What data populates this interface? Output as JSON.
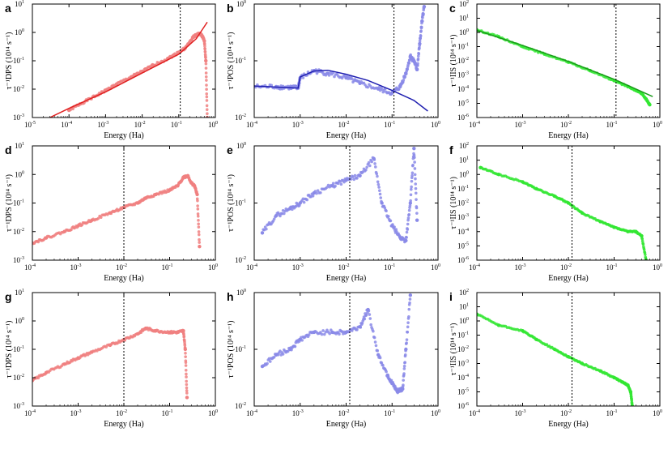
{
  "figure": {
    "xlabel": "Energy (Ha)",
    "colors": {
      "red": "#f08080",
      "red_fit": "#e02020",
      "blue": "#8a8ae8",
      "blue_fit": "#1f1fb0",
      "green": "#33e633",
      "green_fit": "#1a9a1a"
    }
  },
  "chart_data": [
    {
      "type": "scatter",
      "panel_label": "a",
      "ylabel": "τ⁻¹DPS (10¹⁴ s⁻¹)",
      "xscale": "log",
      "yscale": "log",
      "xlim": [
        1e-05,
        1
      ],
      "ylim": [
        0.001,
        10
      ],
      "xticks": [
        -5,
        -4,
        -3,
        -2,
        -1,
        0
      ],
      "yticks": [
        -3,
        -2,
        -1,
        0,
        1
      ],
      "vline_x": 0.11,
      "color": "red",
      "series": [
        {
          "kind": "scatter",
          "x": [
            0.0001,
            0.0002,
            0.0005,
            0.001,
            0.002,
            0.005,
            0.01,
            0.02,
            0.05,
            0.1,
            0.15,
            0.2,
            0.25,
            0.3,
            0.35,
            0.4,
            0.45,
            0.5,
            0.55,
            0.6
          ],
          "y": [
            0.0018,
            0.003,
            0.0055,
            0.009,
            0.015,
            0.027,
            0.042,
            0.07,
            0.12,
            0.2,
            0.28,
            0.45,
            0.7,
            0.8,
            0.9,
            0.85,
            0.7,
            0.5,
            0.1,
            0.001
          ]
        },
        {
          "kind": "fit",
          "color": "red_fit",
          "x": [
            3e-05,
            0.0001,
            0.001,
            0.01,
            0.1,
            0.3,
            0.6
          ],
          "y": [
            0.001,
            0.0021,
            0.008,
            0.037,
            0.17,
            0.6,
            2.3
          ]
        }
      ]
    },
    {
      "type": "scatter",
      "panel_label": "b",
      "ylabel": "τ⁻¹POS (10¹⁴ s⁻¹)",
      "xscale": "log",
      "yscale": "log",
      "xlim": [
        0.0001,
        1
      ],
      "ylim": [
        0.01,
        1
      ],
      "xticks": [
        -4,
        -3,
        -2,
        -1,
        0
      ],
      "yticks": [
        -2,
        -1,
        0
      ],
      "vline_x": 0.11,
      "color": "blue",
      "series": [
        {
          "kind": "scatter",
          "x": [
            0.0001,
            0.0003,
            0.0006,
            0.0009,
            0.001,
            0.002,
            0.004,
            0.01,
            0.02,
            0.05,
            0.1,
            0.15,
            0.2,
            0.25,
            0.3,
            0.35,
            0.4,
            0.45,
            0.5
          ],
          "y": [
            0.035,
            0.035,
            0.034,
            0.033,
            0.05,
            0.067,
            0.06,
            0.05,
            0.04,
            0.032,
            0.027,
            0.035,
            0.06,
            0.12,
            0.1,
            0.07,
            0.2,
            0.5,
            0.9
          ]
        },
        {
          "kind": "fit",
          "color": "blue_fit",
          "x": [
            0.0001,
            0.0009,
            0.00095,
            0.001,
            0.002,
            0.004,
            0.01,
            0.03,
            0.1,
            0.3,
            0.6
          ],
          "y": [
            0.036,
            0.033,
            0.042,
            0.052,
            0.066,
            0.068,
            0.058,
            0.045,
            0.03,
            0.02,
            0.013
          ]
        }
      ]
    },
    {
      "type": "scatter",
      "panel_label": "c",
      "ylabel": "τ⁻¹IIS (10¹⁴ s⁻¹)",
      "xscale": "log",
      "yscale": "log",
      "xlim": [
        0.0001,
        1
      ],
      "ylim": [
        1e-06,
        100
      ],
      "xticks": [
        -4,
        -3,
        -2,
        -1,
        0
      ],
      "yticks": [
        -6,
        -5,
        -4,
        -3,
        -2,
        -1,
        0,
        1,
        2
      ],
      "vline_x": 0.11,
      "color": "green",
      "series": [
        {
          "kind": "scatter",
          "x": [
            0.0001,
            0.0003,
            0.001,
            0.003,
            0.01,
            0.03,
            0.1,
            0.2,
            0.3,
            0.4,
            0.5,
            0.6
          ],
          "y": [
            1.5,
            0.5,
            0.1,
            0.03,
            0.008,
            0.002,
            0.0004,
            0.00015,
            8e-05,
            5e-05,
            2e-05,
            8e-06
          ]
        },
        {
          "kind": "fit",
          "color": "green_fit",
          "x": [
            0.0001,
            0.001,
            0.01,
            0.1,
            0.7
          ],
          "y": [
            1.4,
            0.12,
            0.009,
            0.0005,
            3e-05
          ]
        }
      ]
    },
    {
      "type": "scatter",
      "panel_label": "d",
      "ylabel": "τ⁻¹DPS (10¹⁴ s⁻¹)",
      "xscale": "log",
      "yscale": "log",
      "xlim": [
        0.0001,
        1
      ],
      "ylim": [
        0.001,
        10
      ],
      "xticks": [
        -4,
        -3,
        -2,
        -1,
        0
      ],
      "yticks": [
        -3,
        -2,
        -1,
        0,
        1
      ],
      "vline_x": 0.01,
      "color": "red",
      "series": [
        {
          "kind": "scatter",
          "x": [
            0.0001,
            0.0002,
            0.0005,
            0.001,
            0.002,
            0.005,
            0.01,
            0.02,
            0.03,
            0.05,
            0.1,
            0.15,
            0.2,
            0.25,
            0.3,
            0.35,
            0.4,
            0.45
          ],
          "y": [
            0.004,
            0.006,
            0.01,
            0.016,
            0.025,
            0.045,
            0.07,
            0.1,
            0.15,
            0.2,
            0.28,
            0.4,
            0.8,
            0.9,
            0.5,
            0.4,
            0.2,
            0.003
          ]
        }
      ]
    },
    {
      "type": "scatter",
      "panel_label": "e",
      "ylabel": "τ⁻¹POS (10¹⁴ s⁻¹)",
      "xscale": "log",
      "yscale": "log",
      "xlim": [
        0.0001,
        1
      ],
      "ylim": [
        0.01,
        1
      ],
      "xticks": [
        -4,
        -3,
        -2,
        -1,
        0
      ],
      "yticks": [
        -2,
        -1,
        0
      ],
      "vline_x": 0.012,
      "color": "blue",
      "series": [
        {
          "kind": "scatter",
          "x": [
            0.00015,
            0.0003,
            0.0006,
            0.001,
            0.002,
            0.005,
            0.01,
            0.02,
            0.04,
            0.06,
            0.1,
            0.15,
            0.2,
            0.25,
            0.3,
            0.35
          ],
          "y": [
            0.03,
            0.06,
            0.08,
            0.1,
            0.15,
            0.2,
            0.25,
            0.3,
            0.6,
            0.1,
            0.04,
            0.025,
            0.022,
            0.1,
            0.9,
            0.05
          ]
        }
      ]
    },
    {
      "type": "scatter",
      "panel_label": "f",
      "ylabel": "τ⁻¹IIS (10¹⁴ s⁻¹)",
      "xscale": "log",
      "yscale": "log",
      "xlim": [
        0.0001,
        1
      ],
      "ylim": [
        1e-06,
        100
      ],
      "xticks": [
        -4,
        -3,
        -2,
        -1,
        0
      ],
      "yticks": [
        -6,
        -5,
        -4,
        -3,
        -2,
        -1,
        0,
        1,
        2
      ],
      "vline_x": 0.012,
      "color": "green",
      "series": [
        {
          "kind": "scatter",
          "x": [
            0.00012,
            0.0003,
            0.001,
            0.002,
            0.005,
            0.01,
            0.02,
            0.05,
            0.1,
            0.2,
            0.3,
            0.4,
            0.5
          ],
          "y": [
            3,
            1,
            0.3,
            0.1,
            0.03,
            0.01,
            0.002,
            0.0005,
            0.0002,
            0.0001,
            0.0001,
            5e-05,
            1e-06
          ]
        }
      ]
    },
    {
      "type": "scatter",
      "panel_label": "g",
      "ylabel": "τ⁻¹DPS (10¹⁴ s⁻¹)",
      "xscale": "log",
      "yscale": "log",
      "xlim": [
        0.0001,
        1
      ],
      "ylim": [
        0.001,
        10
      ],
      "xticks": [
        -4,
        -3,
        -2,
        -1,
        0
      ],
      "yticks": [
        -3,
        -2,
        -1,
        0,
        1
      ],
      "vline_x": 0.01,
      "color": "red",
      "series": [
        {
          "kind": "scatter",
          "x": [
            0.0001,
            0.0002,
            0.0005,
            0.001,
            0.002,
            0.005,
            0.01,
            0.02,
            0.03,
            0.05,
            0.1,
            0.15,
            0.2,
            0.22,
            0.24
          ],
          "y": [
            0.008,
            0.015,
            0.03,
            0.05,
            0.08,
            0.14,
            0.22,
            0.35,
            0.55,
            0.45,
            0.4,
            0.4,
            0.45,
            0.1,
            0.002
          ]
        }
      ]
    },
    {
      "type": "scatter",
      "panel_label": "h",
      "ylabel": "τ⁻¹POS (10¹⁴ s⁻¹)",
      "xscale": "log",
      "yscale": "log",
      "xlim": [
        0.0001,
        1
      ],
      "ylim": [
        0.01,
        1
      ],
      "xticks": [
        -4,
        -3,
        -2,
        -1,
        0
      ],
      "yticks": [
        -2,
        -1,
        0
      ],
      "vline_x": 0.012,
      "color": "blue",
      "series": [
        {
          "kind": "scatter",
          "x": [
            0.00015,
            0.0003,
            0.0006,
            0.001,
            0.002,
            0.005,
            0.01,
            0.02,
            0.03,
            0.05,
            0.08,
            0.1,
            0.13,
            0.17,
            0.2,
            0.25
          ],
          "y": [
            0.05,
            0.08,
            0.1,
            0.15,
            0.2,
            0.2,
            0.2,
            0.25,
            0.5,
            0.08,
            0.035,
            0.025,
            0.018,
            0.02,
            0.1,
            0.9
          ]
        }
      ]
    },
    {
      "type": "scatter",
      "panel_label": "i",
      "ylabel": "τ⁻¹IIS (10¹⁴ s⁻¹)",
      "xscale": "log",
      "yscale": "log",
      "xlim": [
        0.0001,
        1
      ],
      "ylim": [
        1e-06,
        100
      ],
      "xticks": [
        -4,
        -3,
        -2,
        -1,
        0
      ],
      "yticks": [
        -6,
        -5,
        -4,
        -3,
        -2,
        -1,
        0,
        1,
        2
      ],
      "vline_x": 0.012,
      "color": "green",
      "series": [
        {
          "kind": "scatter",
          "x": [
            0.0001,
            0.0003,
            0.001,
            0.002,
            0.005,
            0.01,
            0.02,
            0.05,
            0.1,
            0.15,
            0.2,
            0.23,
            0.25
          ],
          "y": [
            3,
            0.5,
            0.2,
            0.05,
            0.01,
            0.003,
            0.001,
            0.0003,
            0.0001,
            5e-05,
            3e-05,
            1e-05,
            1e-06
          ]
        }
      ]
    }
  ]
}
